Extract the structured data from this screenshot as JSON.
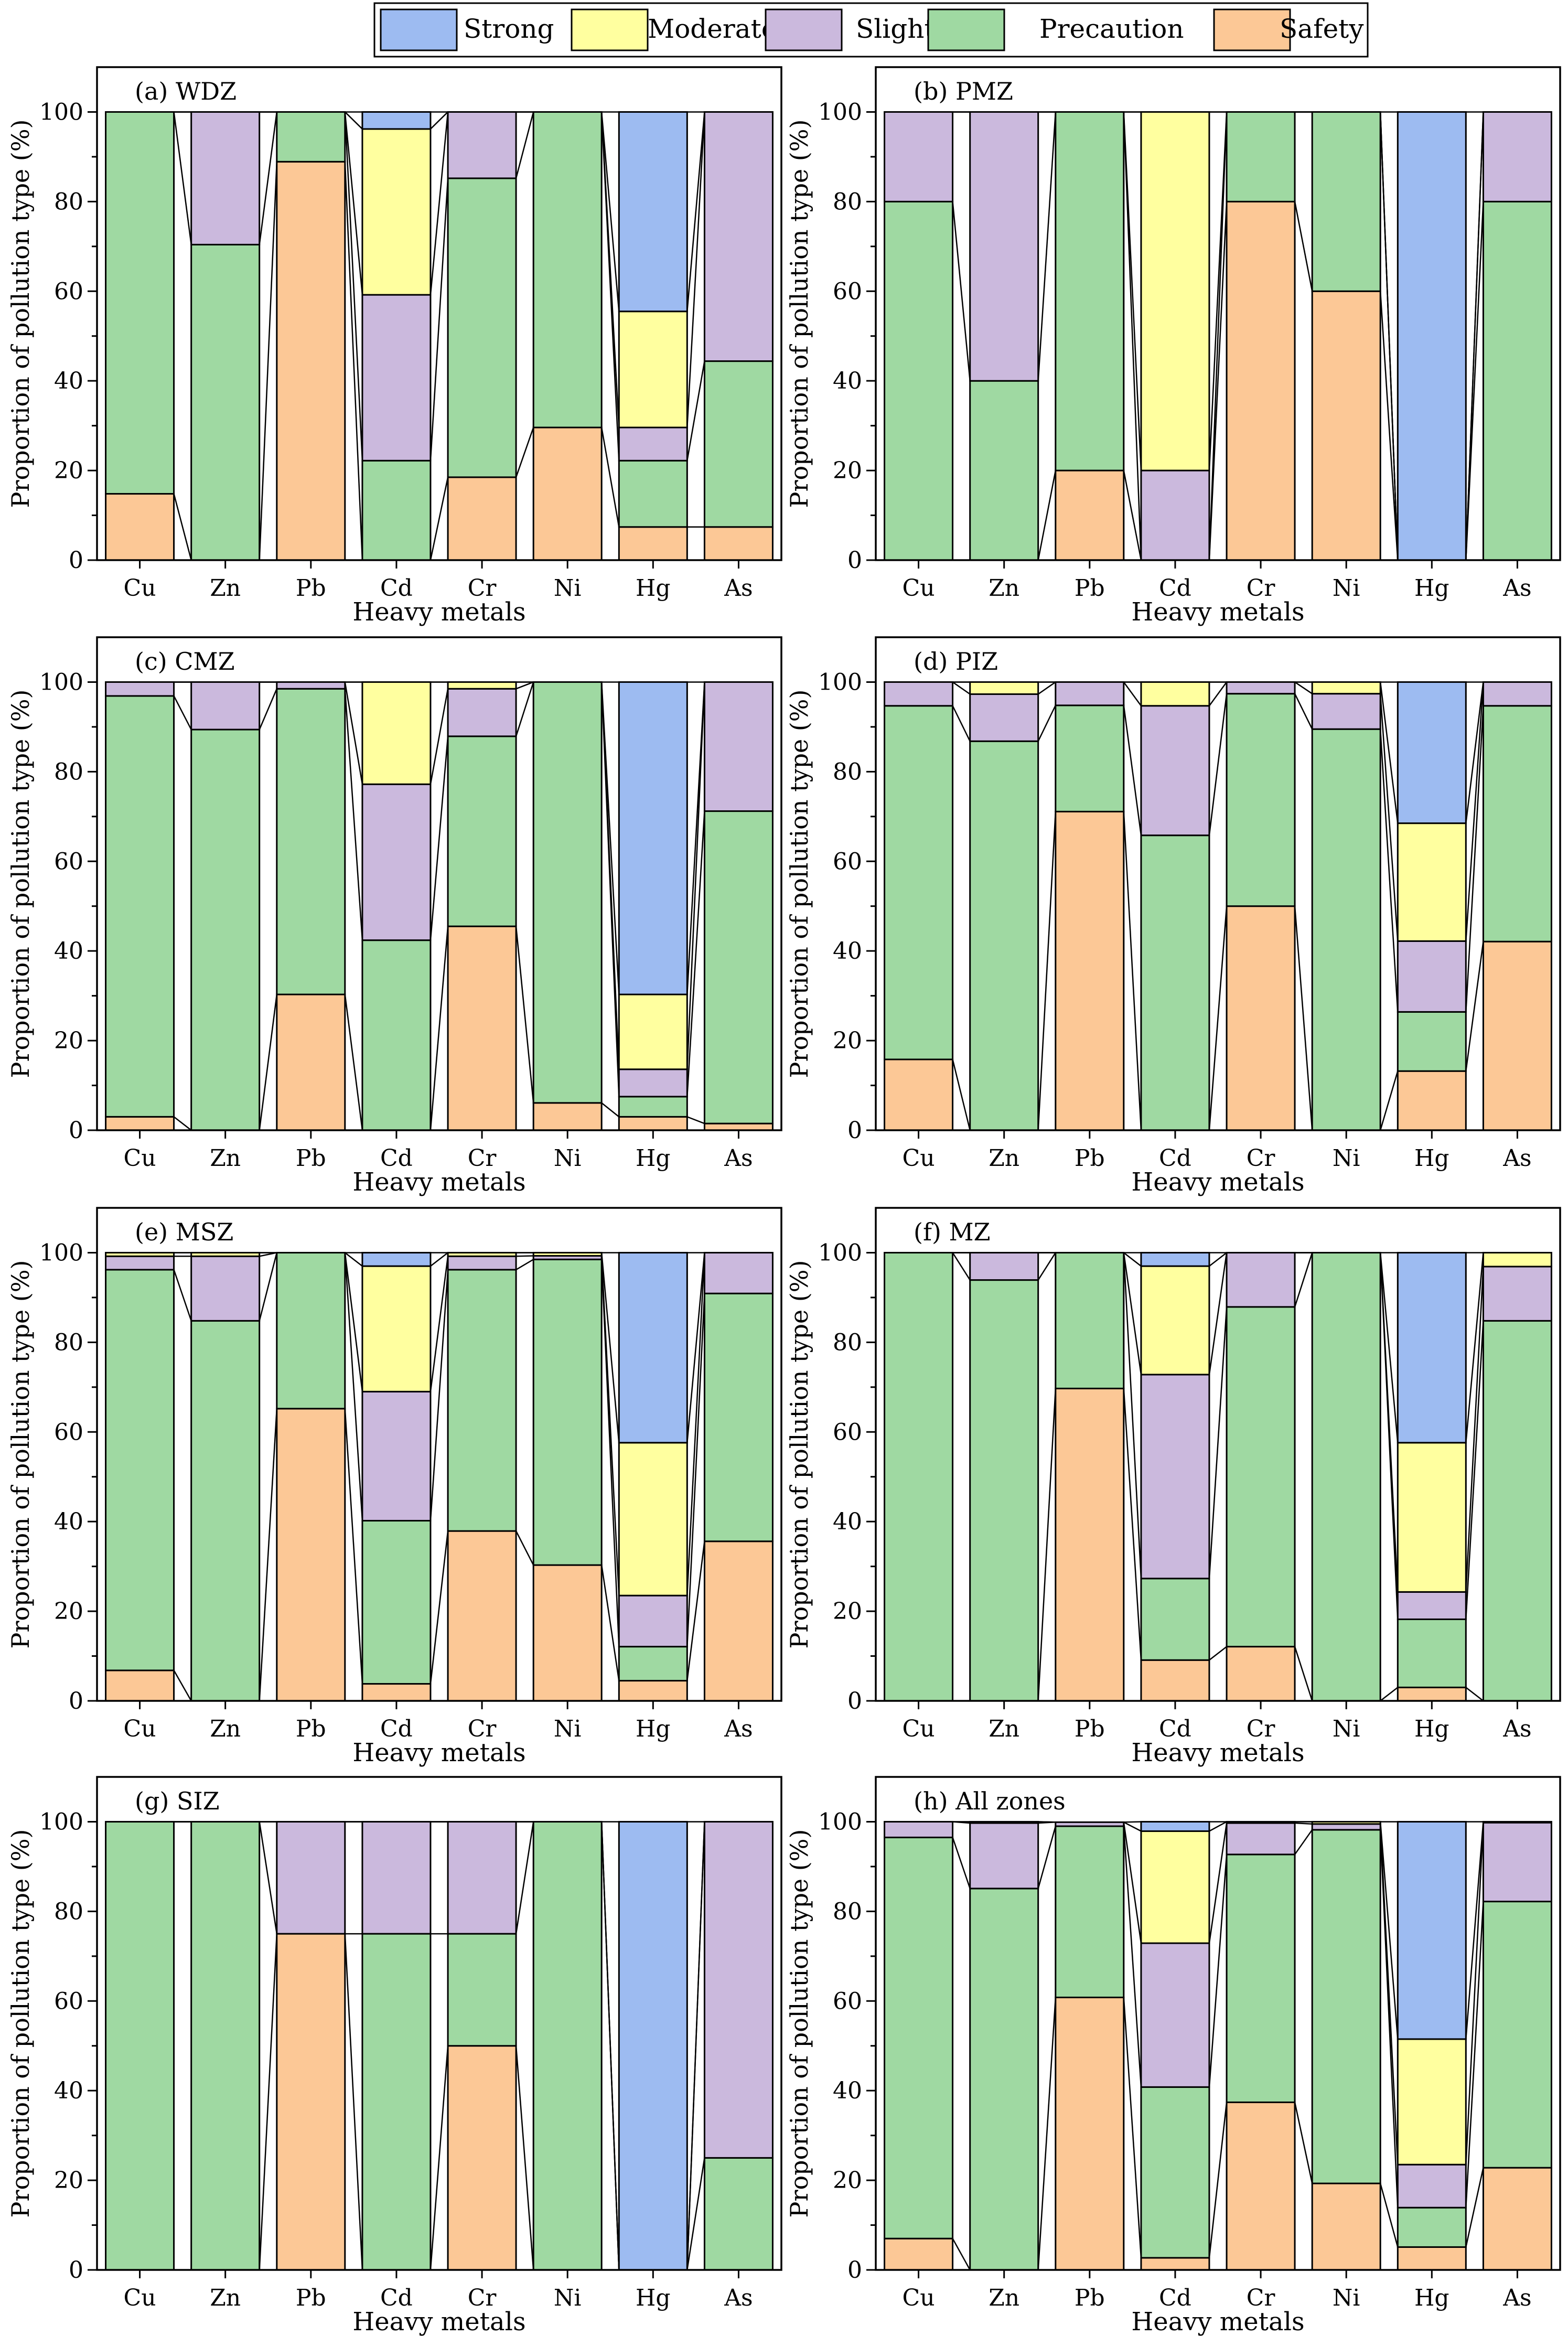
{
  "legend": {
    "entries": [
      {
        "key": "strong",
        "label": "Strong"
      },
      {
        "key": "moderate",
        "label": "Moderate"
      },
      {
        "key": "slight",
        "label": "Slight"
      },
      {
        "key": "precaution",
        "label": "Precaution"
      },
      {
        "key": "safety",
        "label": "Safety"
      }
    ]
  },
  "colors": {
    "strong": "#9dbbf1",
    "moderate": "#ffff9f",
    "slight": "#cbb9dd",
    "precaution": "#9fd9a2",
    "safety": "#fcc896"
  },
  "y_ticks": [
    "0",
    "20",
    "40",
    "60",
    "80",
    "100"
  ],
  "chart_data": [
    {
      "type": "bar",
      "stacked": true,
      "title": "(a) WDZ",
      "categories": [
        "Cu",
        "Zn",
        "Pb",
        "Cd",
        "Cr",
        "Ni",
        "Hg",
        "As"
      ],
      "xlabel": "Heavy metals",
      "ylabel": "Proportion of pollution type (%)",
      "ylim": [
        0,
        110
      ],
      "series": [
        {
          "name": "Safety",
          "values": [
            14.8,
            0,
            88.9,
            0,
            18.5,
            29.6,
            7.4,
            7.4
          ]
        },
        {
          "name": "Precaution",
          "values": [
            85.2,
            70.4,
            11.1,
            22.2,
            66.7,
            70.4,
            14.8,
            37.0
          ]
        },
        {
          "name": "Slight",
          "values": [
            0,
            29.6,
            0,
            37.0,
            14.8,
            0,
            7.4,
            55.6
          ]
        },
        {
          "name": "Moderate",
          "values": [
            0,
            0,
            0,
            37.0,
            0,
            0,
            25.9,
            0
          ]
        },
        {
          "name": "Strong",
          "values": [
            0,
            0,
            0,
            3.8,
            0,
            0,
            44.5,
            0
          ]
        }
      ]
    },
    {
      "type": "bar",
      "stacked": true,
      "title": "(b) PMZ",
      "categories": [
        "Cu",
        "Zn",
        "Pb",
        "Cd",
        "Cr",
        "Ni",
        "Hg",
        "As"
      ],
      "xlabel": "Heavy metals",
      "ylabel": "Proportion of pollution type (%)",
      "ylim": [
        0,
        110
      ],
      "series": [
        {
          "name": "Safety",
          "values": [
            0,
            0,
            20,
            0,
            80,
            60,
            0,
            0
          ]
        },
        {
          "name": "Precaution",
          "values": [
            80,
            40,
            80,
            0,
            20,
            40,
            0,
            80
          ]
        },
        {
          "name": "Slight",
          "values": [
            20,
            60,
            0,
            20,
            0,
            0,
            0,
            20
          ]
        },
        {
          "name": "Moderate",
          "values": [
            0,
            0,
            0,
            80,
            0,
            0,
            0,
            0
          ]
        },
        {
          "name": "Strong",
          "values": [
            0,
            0,
            0,
            0,
            0,
            0,
            100,
            0
          ]
        }
      ]
    },
    {
      "type": "bar",
      "stacked": true,
      "title": "(c) CMZ",
      "categories": [
        "Cu",
        "Zn",
        "Pb",
        "Cd",
        "Cr",
        "Ni",
        "Hg",
        "As"
      ],
      "xlabel": "Heavy metals",
      "ylabel": "Proportion of pollution type (%)",
      "ylim": [
        0,
        110
      ],
      "series": [
        {
          "name": "Safety",
          "values": [
            3.0,
            0,
            30.3,
            0,
            45.5,
            6.1,
            3.0,
            1.5
          ]
        },
        {
          "name": "Precaution",
          "values": [
            93.9,
            89.4,
            68.2,
            42.4,
            42.4,
            93.9,
            4.5,
            69.7
          ]
        },
        {
          "name": "Slight",
          "values": [
            3.1,
            10.6,
            1.5,
            34.8,
            10.6,
            0,
            6.1,
            28.8
          ]
        },
        {
          "name": "Moderate",
          "values": [
            0,
            0,
            0,
            22.8,
            1.5,
            0,
            16.7,
            0
          ]
        },
        {
          "name": "Strong",
          "values": [
            0,
            0,
            0,
            0,
            0,
            0,
            69.7,
            0
          ]
        }
      ]
    },
    {
      "type": "bar",
      "stacked": true,
      "title": "(d) PIZ",
      "categories": [
        "Cu",
        "Zn",
        "Pb",
        "Cd",
        "Cr",
        "Ni",
        "Hg",
        "As"
      ],
      "xlabel": "Heavy metals",
      "ylabel": "Proportion of pollution type (%)",
      "ylim": [
        0,
        110
      ],
      "series": [
        {
          "name": "Safety",
          "values": [
            15.8,
            0,
            71.1,
            0,
            50.0,
            0,
            13.2,
            42.1
          ]
        },
        {
          "name": "Precaution",
          "values": [
            78.9,
            86.8,
            23.7,
            65.8,
            47.4,
            89.5,
            13.2,
            52.6
          ]
        },
        {
          "name": "Slight",
          "values": [
            5.3,
            10.5,
            5.2,
            28.9,
            2.6,
            7.9,
            15.8,
            5.3
          ]
        },
        {
          "name": "Moderate",
          "values": [
            0,
            2.7,
            0,
            5.3,
            0,
            2.6,
            26.3,
            0
          ]
        },
        {
          "name": "Strong",
          "values": [
            0,
            0,
            0,
            0,
            0,
            0,
            31.5,
            0
          ]
        }
      ]
    },
    {
      "type": "bar",
      "stacked": true,
      "title": "(e) MSZ",
      "categories": [
        "Cu",
        "Zn",
        "Pb",
        "Cd",
        "Cr",
        "Ni",
        "Hg",
        "As"
      ],
      "xlabel": "Heavy metals",
      "ylabel": "Proportion of pollution type (%)",
      "ylim": [
        0,
        110
      ],
      "series": [
        {
          "name": "Safety",
          "values": [
            6.8,
            0,
            65.2,
            3.8,
            37.9,
            30.3,
            4.5,
            35.6
          ]
        },
        {
          "name": "Precaution",
          "values": [
            89.4,
            84.8,
            34.8,
            36.4,
            58.3,
            68.2,
            7.6,
            55.3
          ]
        },
        {
          "name": "Slight",
          "values": [
            3.0,
            14.4,
            0,
            28.8,
            3.0,
            0.8,
            11.4,
            9.1
          ]
        },
        {
          "name": "Moderate",
          "values": [
            0.8,
            0.8,
            0,
            28.0,
            0.8,
            0.7,
            34.1,
            0
          ]
        },
        {
          "name": "Strong",
          "values": [
            0,
            0,
            0,
            3.0,
            0,
            0,
            42.4,
            0
          ]
        }
      ]
    },
    {
      "type": "bar",
      "stacked": true,
      "title": "(f) MZ",
      "categories": [
        "Cu",
        "Zn",
        "Pb",
        "Cd",
        "Cr",
        "Ni",
        "Hg",
        "As"
      ],
      "xlabel": "Heavy metals",
      "ylabel": "Proportion of pollution type (%)",
      "ylim": [
        0,
        110
      ],
      "series": [
        {
          "name": "Safety",
          "values": [
            0,
            0,
            69.7,
            9.1,
            12.1,
            0,
            3.0,
            0
          ]
        },
        {
          "name": "Precaution",
          "values": [
            100,
            93.9,
            30.3,
            18.2,
            75.8,
            100,
            15.2,
            84.8
          ]
        },
        {
          "name": "Slight",
          "values": [
            0,
            6.1,
            0,
            45.5,
            12.1,
            0,
            6.1,
            12.1
          ]
        },
        {
          "name": "Moderate",
          "values": [
            0,
            0,
            0,
            24.2,
            0,
            0,
            33.3,
            3.1
          ]
        },
        {
          "name": "Strong",
          "values": [
            0,
            0,
            0,
            3.0,
            0,
            0,
            42.4,
            0
          ]
        }
      ]
    },
    {
      "type": "bar",
      "stacked": true,
      "title": "(g) SIZ",
      "categories": [
        "Cu",
        "Zn",
        "Pb",
        "Cd",
        "Cr",
        "Ni",
        "Hg",
        "As"
      ],
      "xlabel": "Heavy metals",
      "ylabel": "Proportion of pollution type (%)",
      "ylim": [
        0,
        110
      ],
      "series": [
        {
          "name": "Safety",
          "values": [
            0,
            0,
            75,
            0,
            50,
            0,
            0,
            0
          ]
        },
        {
          "name": "Precaution",
          "values": [
            100,
            100,
            0,
            75,
            25,
            100,
            0,
            25
          ]
        },
        {
          "name": "Slight",
          "values": [
            0,
            0,
            25,
            25,
            25,
            0,
            0,
            75
          ]
        },
        {
          "name": "Moderate",
          "values": [
            0,
            0,
            0,
            0,
            0,
            0,
            0,
            0
          ]
        },
        {
          "name": "Strong",
          "values": [
            0,
            0,
            0,
            0,
            0,
            0,
            100,
            0
          ]
        }
      ]
    },
    {
      "type": "bar",
      "stacked": true,
      "title": "(h) All zones",
      "categories": [
        "Cu",
        "Zn",
        "Pb",
        "Cd",
        "Cr",
        "Ni",
        "Hg",
        "As"
      ],
      "xlabel": "Heavy metals",
      "ylabel": "Proportion of pollution type (%)",
      "ylim": [
        0,
        110
      ],
      "series": [
        {
          "name": "Safety",
          "values": [
            7.0,
            0,
            60.8,
            2.7,
            37.4,
            19.3,
            5.1,
            22.8
          ]
        },
        {
          "name": "Precaution",
          "values": [
            89.5,
            85.1,
            38.2,
            38.1,
            55.3,
            78.9,
            8.8,
            59.4
          ]
        },
        {
          "name": "Slight",
          "values": [
            3.5,
            14.6,
            0.9,
            32.1,
            7.0,
            1.3,
            9.6,
            17.6
          ]
        },
        {
          "name": "Moderate",
          "values": [
            0,
            0.3,
            0,
            25.0,
            0.3,
            0.5,
            28.0,
            0.2
          ]
        },
        {
          "name": "Strong",
          "values": [
            0,
            0,
            0,
            2.1,
            0,
            0,
            48.5,
            0
          ]
        }
      ]
    }
  ]
}
